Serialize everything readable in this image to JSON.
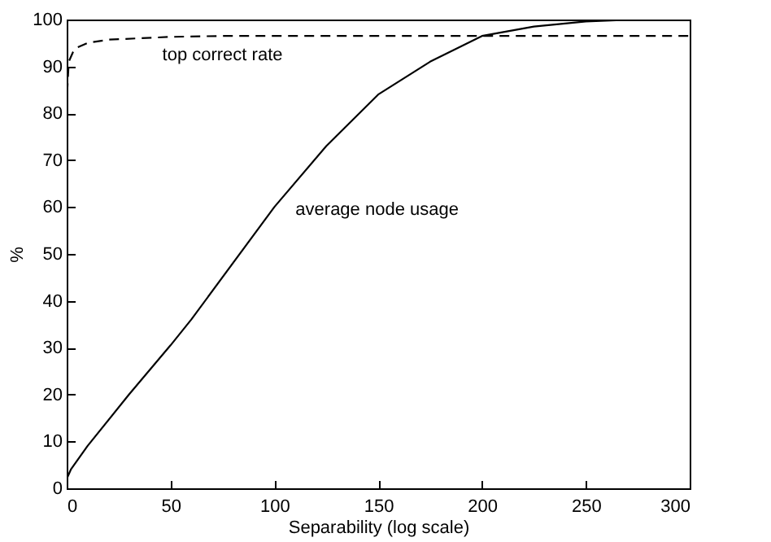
{
  "chart_data": {
    "type": "line",
    "xlabel": "Separability (log scale)",
    "ylabel": "%",
    "xlim": [
      0,
      300
    ],
    "xticks": [
      0,
      50,
      100,
      150,
      200,
      250,
      300
    ],
    "ylim": [
      0,
      100
    ],
    "yticks": [
      0,
      10,
      20,
      30,
      40,
      50,
      60,
      70,
      80,
      90,
      100
    ],
    "grid": false,
    "series": [
      {
        "name": "top correct rate",
        "color": "#000000",
        "line_style": "dashed",
        "x": [
          0,
          0.3,
          1,
          3,
          5,
          10,
          20,
          50,
          75,
          100,
          300
        ],
        "values": [
          60,
          85,
          91,
          93,
          94,
          95,
          95.7,
          96.3,
          96.5,
          96.5,
          96.5
        ]
      },
      {
        "name": "average node usage",
        "color": "#000000",
        "line_style": "solid",
        "x": [
          0,
          2,
          10,
          30,
          50,
          60,
          100,
          125,
          150,
          175,
          200,
          225,
          250,
          275,
          300
        ],
        "values": [
          2,
          4,
          9,
          20,
          30.5,
          36,
          60,
          73,
          84,
          91,
          96.5,
          98.5,
          99.6,
          100,
          100
        ]
      }
    ]
  }
}
